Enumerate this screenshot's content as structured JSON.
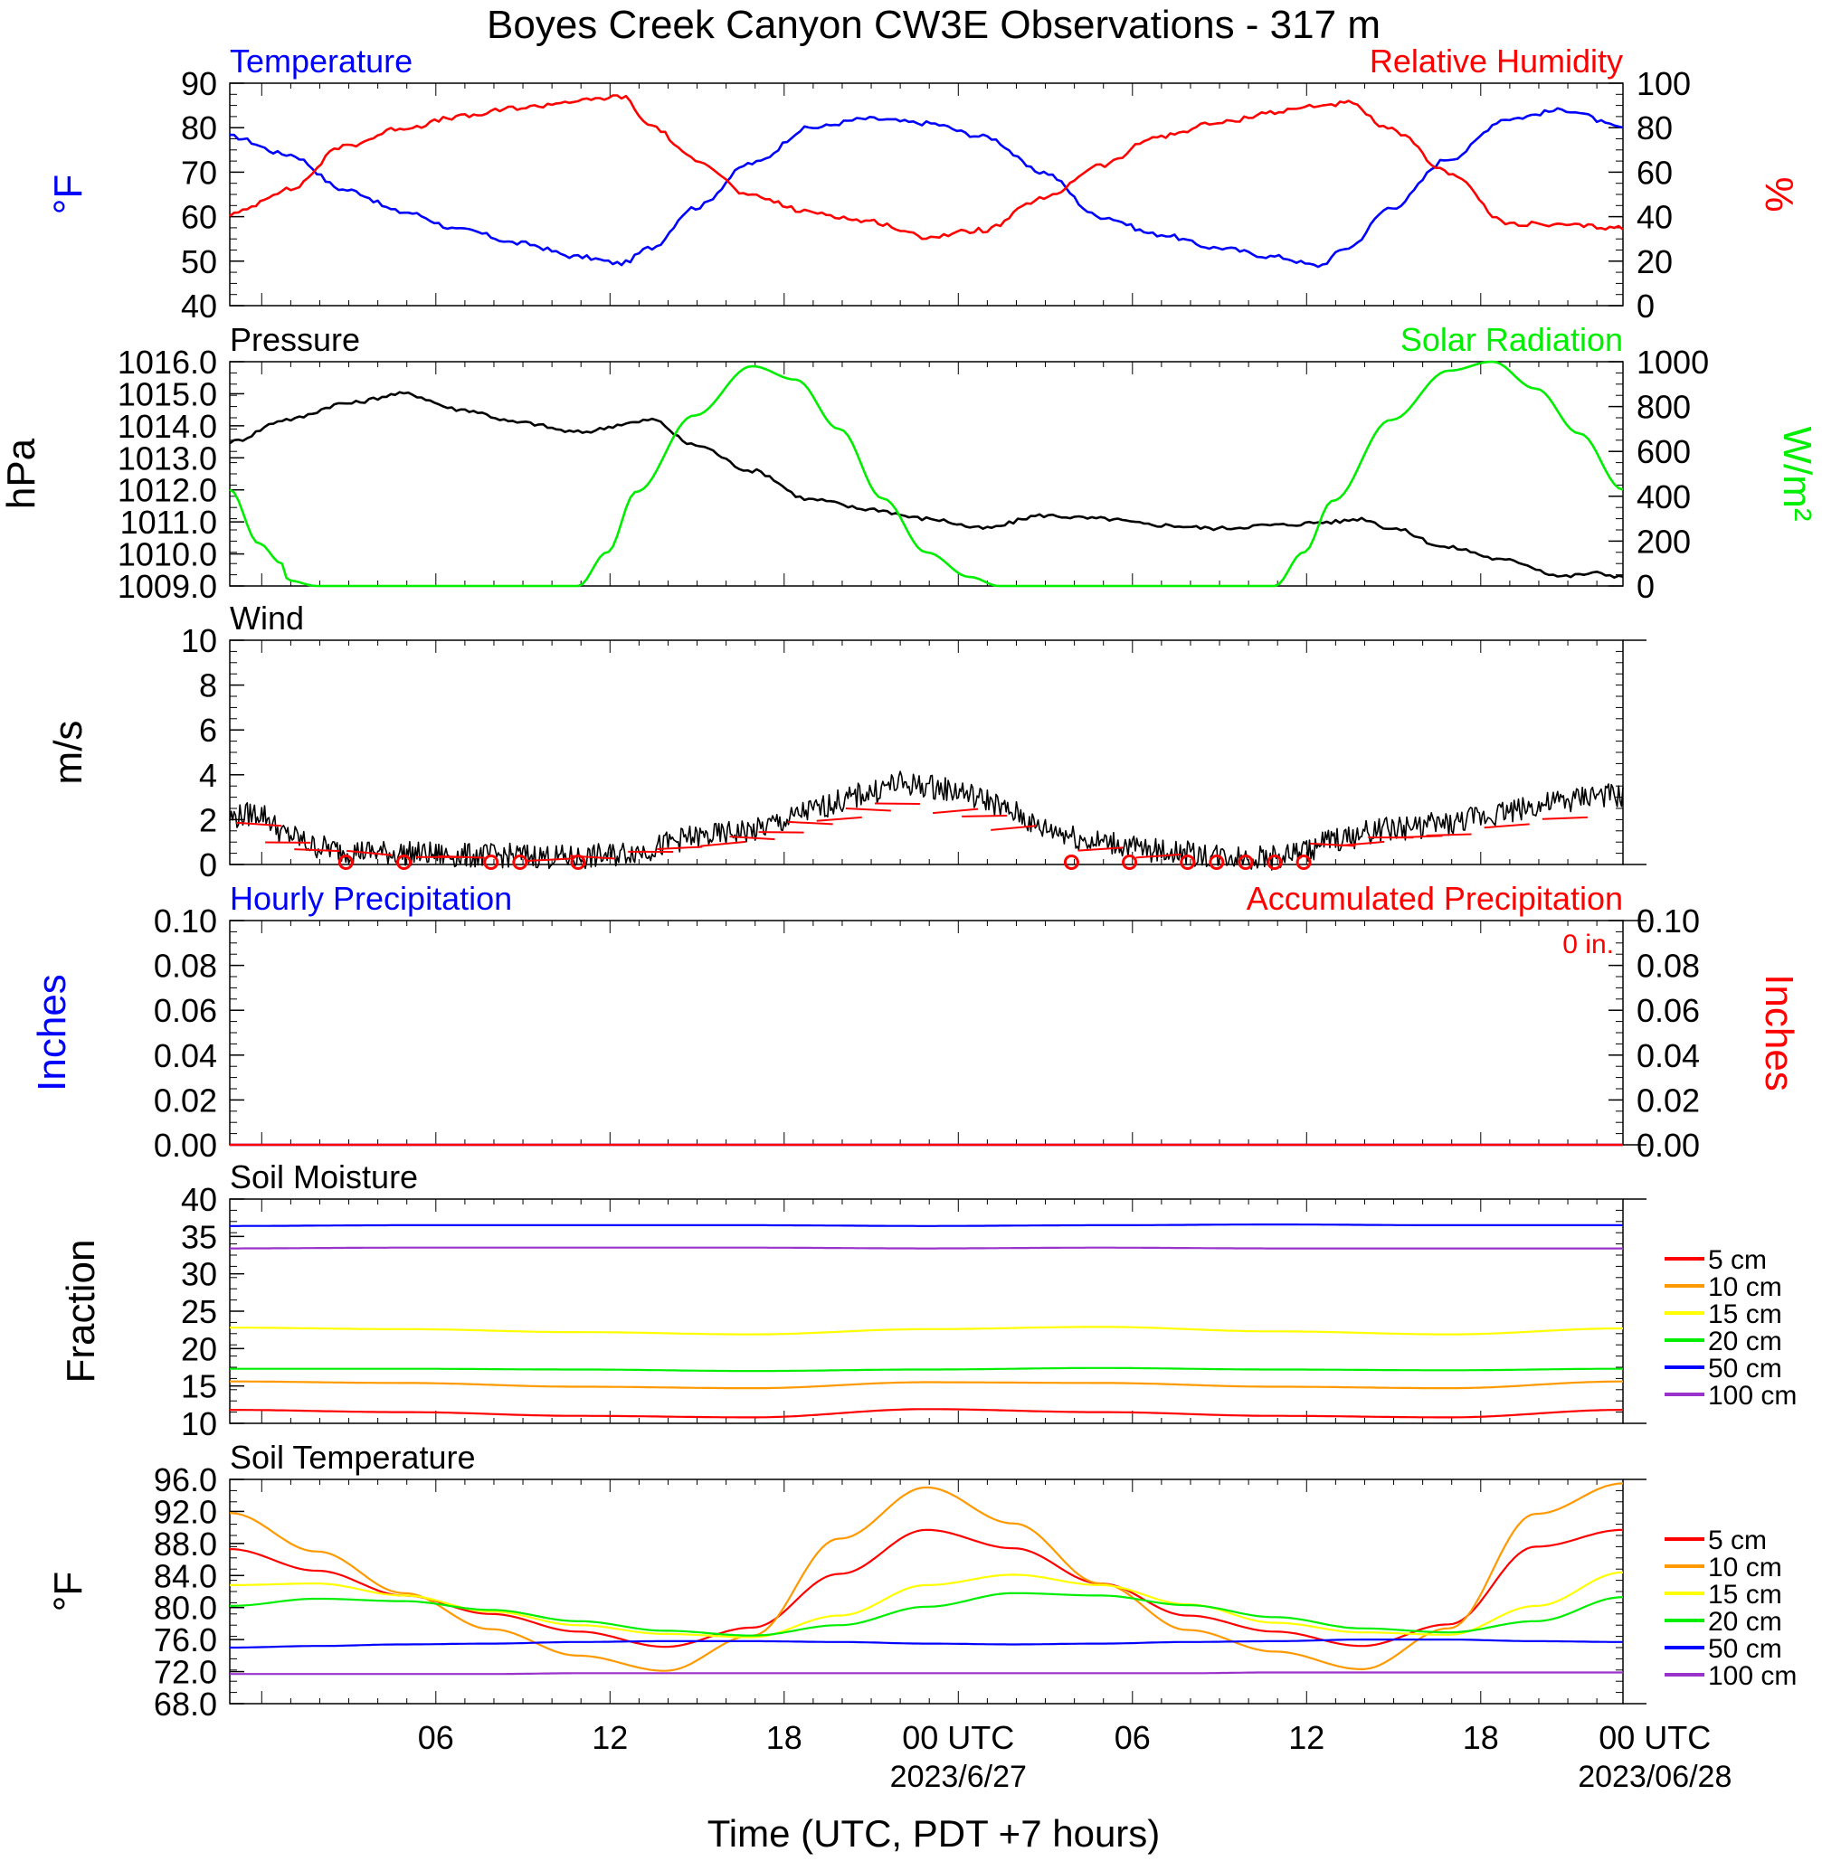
{
  "title": "Boyes Creek Canyon CW3E Observations - 317 m",
  "x_axis": {
    "label": "Time (UTC, PDT +7 hours)",
    "ticks": [
      "06",
      "12",
      "18",
      "00 UTC",
      "06",
      "12",
      "18",
      "00 UTC"
    ],
    "dates": [
      "2023/6/27",
      "2023/06/28"
    ]
  },
  "colors": {
    "blue": "#0000ff",
    "red": "#ff0000",
    "green": "#00ee00",
    "black": "#000000",
    "orange": "#ff9900",
    "yellow": "#ffff00",
    "purple": "#9933cc"
  },
  "chart_data": [
    {
      "type": "line",
      "title_left": "Temperature",
      "title_right": "Relative Humidity",
      "ylabel_left": "°F",
      "ylabel_right": "%",
      "ylim_left": [
        40,
        90
      ],
      "ylim_right": [
        0,
        100
      ],
      "yticks_left": [
        "90",
        "80",
        "70",
        "60",
        "50",
        "40"
      ],
      "yticks_right": [
        "100",
        "80",
        "60",
        "40",
        "20",
        "0"
      ],
      "x_hours": [
        0,
        2,
        4,
        6,
        8,
        10,
        12,
        13.5,
        14.5,
        16,
        18,
        20,
        22,
        24,
        26,
        28,
        30,
        32,
        34,
        36,
        37.5,
        38.5,
        40,
        42,
        44,
        46,
        48
      ],
      "series": [
        {
          "name": "Temperature",
          "axis": "left",
          "color": "#0000ff",
          "values": [
            78,
            74,
            66,
            61,
            57,
            54,
            51,
            49.5,
            53,
            62,
            72,
            80,
            82,
            81,
            78,
            70,
            60,
            56,
            53,
            51,
            49,
            53,
            62,
            73,
            82,
            84,
            80
          ]
        },
        {
          "name": "Relative Humidity",
          "axis": "right",
          "color": "#ff0000",
          "values": [
            41,
            52,
            72,
            80,
            85,
            89,
            92,
            94,
            81,
            66,
            49,
            42,
            38,
            31,
            34,
            48,
            63,
            76,
            82,
            87,
            90,
            91,
            79,
            60,
            37,
            36,
            35
          ]
        }
      ]
    },
    {
      "type": "line",
      "title_left": "Pressure",
      "title_right": "Solar Radiation",
      "ylabel_left": "hPa",
      "ylabel_right": "W/m²",
      "ylim_left": [
        1009,
        1016
      ],
      "ylim_right": [
        0,
        1000
      ],
      "yticks_left": [
        "1016.0",
        "1015.0",
        "1014.0",
        "1013.0",
        "1012.0",
        "1011.0",
        "1010.0",
        "1009.0"
      ],
      "yticks_right": [
        "1000",
        "800",
        "600",
        "400",
        "200",
        "0"
      ],
      "x_hours": [
        0,
        2,
        4,
        6,
        8,
        10,
        12,
        14,
        14.5,
        16,
        18,
        20,
        22,
        24,
        26,
        28,
        30,
        32,
        34,
        36,
        38,
        39,
        40,
        42,
        44,
        46,
        47,
        48
      ],
      "series": [
        {
          "name": "Pressure",
          "axis": "left",
          "color": "#000000",
          "values": [
            1013.5,
            1014.2,
            1014.7,
            1015.0,
            1014.5,
            1014.1,
            1013.8,
            1014.1,
            1014.2,
            1013.4,
            1012.6,
            1011.7,
            1011.4,
            1011.1,
            1010.8,
            1011.2,
            1011.1,
            1010.9,
            1010.8,
            1010.9,
            1011.0,
            1011.1,
            1010.8,
            1010.2,
            1009.8,
            1009.3,
            1009.4,
            1009.3
          ]
        },
        {
          "name": "Solar Radiation",
          "axis": "right",
          "color": "#00ee00",
          "x_hours": [
            0,
            1,
            1.8,
            2,
            3,
            10,
            12,
            13,
            14,
            16,
            18,
            19.5,
            21,
            22.5,
            24,
            25.5,
            26.5,
            27,
            34,
            36,
            37,
            38,
            40,
            42,
            43.5,
            45,
            46.5,
            48
          ],
          "values": [
            430,
            190,
            100,
            25,
            0,
            0,
            0,
            150,
            420,
            760,
            980,
            920,
            700,
            390,
            150,
            40,
            0,
            0,
            0,
            0,
            150,
            380,
            740,
            960,
            1000,
            880,
            680,
            430
          ]
        }
      ]
    },
    {
      "type": "line",
      "title_left": "Wind",
      "ylabel_left": "m/s",
      "ylim_left": [
        0,
        10
      ],
      "yticks_left": [
        "10",
        "8",
        "6",
        "4",
        "2",
        "0"
      ],
      "x_hours": [
        0,
        1,
        2,
        3,
        4,
        6,
        8,
        10,
        12,
        13,
        14,
        16,
        18,
        19,
        20,
        21,
        22,
        23,
        24,
        25,
        26,
        27,
        28,
        30,
        32,
        34,
        36,
        37,
        38,
        40,
        42,
        43,
        44,
        45,
        46,
        47,
        48
      ],
      "series": [
        {
          "name": "Wind speed",
          "axis": "left",
          "color": "#000000",
          "values": [
            2.1,
            2.3,
            1.3,
            0.8,
            0.6,
            0.5,
            0.4,
            0.4,
            0.3,
            0.4,
            0.6,
            1.2,
            1.5,
            1.9,
            2.4,
            2.8,
            3.2,
            3.6,
            3.5,
            3.3,
            2.9,
            2.3,
            1.6,
            1.0,
            0.6,
            0.4,
            0.3,
            0.6,
            1.1,
            1.6,
            1.8,
            2.1,
            2.4,
            2.6,
            2.8,
            3.1,
            3.0
          ]
        }
      ],
      "calm_markers_hours": [
        4,
        6,
        9,
        10,
        12,
        29,
        31,
        33,
        34,
        35,
        36,
        37
      ]
    },
    {
      "type": "line",
      "title_left": "Hourly Precipitation",
      "title_right": "Accumulated Precipitation",
      "annotation": "0 in.",
      "ylabel_left": "Inches",
      "ylabel_right": "Inches",
      "ylim_left": [
        0,
        0.1
      ],
      "ylim_right": [
        0,
        0.1
      ],
      "yticks_left": [
        "0.10",
        "0.08",
        "0.06",
        "0.04",
        "0.02",
        "0.00"
      ],
      "yticks_right": [
        "0.10",
        "0.08",
        "0.06",
        "0.04",
        "0.02",
        "0.00"
      ],
      "x_hours": [
        0,
        48
      ],
      "series": [
        {
          "name": "Hourly Precipitation",
          "axis": "left",
          "color": "#0000ff",
          "values": [
            0,
            0
          ]
        },
        {
          "name": "Accumulated Precipitation",
          "axis": "right",
          "color": "#ff0000",
          "values": [
            0,
            0
          ]
        }
      ]
    },
    {
      "type": "line",
      "title_left": "Soil Moisture",
      "ylabel_left": "Fraction",
      "ylim_left": [
        10,
        40
      ],
      "yticks_left": [
        "40",
        "35",
        "30",
        "25",
        "20",
        "15",
        "10"
      ],
      "x_hours": [
        0,
        6,
        12,
        18,
        24,
        30,
        36,
        42,
        48
      ],
      "series": [
        {
          "name": "5 cm",
          "color": "#ff0000",
          "values": [
            11.8,
            11.5,
            11.0,
            10.8,
            11.9,
            11.5,
            11.0,
            10.8,
            11.8
          ]
        },
        {
          "name": "10 cm",
          "color": "#ff9900",
          "values": [
            15.6,
            15.4,
            14.9,
            14.7,
            15.5,
            15.4,
            14.9,
            14.7,
            15.6
          ]
        },
        {
          "name": "15 cm",
          "color": "#ffff00",
          "values": [
            22.8,
            22.6,
            22.2,
            21.9,
            22.6,
            22.9,
            22.3,
            21.9,
            22.7
          ]
        },
        {
          "name": "20 cm",
          "color": "#00ee00",
          "values": [
            17.3,
            17.3,
            17.2,
            17.0,
            17.2,
            17.4,
            17.2,
            17.1,
            17.3
          ]
        },
        {
          "name": "50 cm",
          "color": "#0000ff",
          "values": [
            36.4,
            36.5,
            36.5,
            36.5,
            36.4,
            36.5,
            36.6,
            36.5,
            36.5
          ]
        },
        {
          "name": "100 cm",
          "color": "#9933cc",
          "values": [
            33.4,
            33.5,
            33.5,
            33.5,
            33.4,
            33.5,
            33.4,
            33.4,
            33.4
          ]
        }
      ]
    },
    {
      "type": "line",
      "title_left": "Soil Temperature",
      "ylabel_left": "°F",
      "ylim_left": [
        68,
        96
      ],
      "yticks_left": [
        "96.0",
        "92.0",
        "88.0",
        "84.0",
        "80.0",
        "76.0",
        "72.0",
        "68.0"
      ],
      "x_hours": [
        0,
        3,
        6,
        9,
        12,
        15,
        18,
        21,
        24,
        27,
        30,
        33,
        36,
        39,
        42,
        45,
        48
      ],
      "series": [
        {
          "name": "5 cm",
          "color": "#ff0000",
          "values": [
            87.3,
            84.6,
            81.5,
            79.2,
            77.0,
            75.1,
            77.5,
            84.2,
            89.7,
            87.4,
            83.0,
            79.0,
            77.0,
            75.2,
            77.9,
            87.6,
            89.7
          ]
        },
        {
          "name": "10 cm",
          "color": "#ff9900",
          "values": [
            91.8,
            87.0,
            81.8,
            77.3,
            74.0,
            72.1,
            76.5,
            88.6,
            95.0,
            90.5,
            83.0,
            77.2,
            74.5,
            72.3,
            77.4,
            91.7,
            95.5
          ]
        },
        {
          "name": "15 cm",
          "color": "#ffff00",
          "values": [
            82.8,
            83.0,
            81.5,
            79.5,
            77.8,
            76.7,
            76.3,
            79.0,
            82.8,
            84.1,
            82.8,
            80.4,
            78.1,
            76.9,
            76.6,
            80.2,
            84.4
          ]
        },
        {
          "name": "20 cm",
          "color": "#00ee00",
          "values": [
            80.2,
            81.1,
            80.8,
            79.7,
            78.3,
            77.1,
            76.5,
            77.8,
            80.1,
            81.8,
            81.5,
            80.3,
            78.8,
            77.4,
            76.9,
            78.3,
            81.3
          ]
        },
        {
          "name": "50 cm",
          "color": "#0000ff",
          "values": [
            75.0,
            75.2,
            75.4,
            75.5,
            75.7,
            75.8,
            75.8,
            75.7,
            75.5,
            75.4,
            75.5,
            75.7,
            75.8,
            76.0,
            76.0,
            75.8,
            75.7
          ]
        },
        {
          "name": "100 cm",
          "color": "#9933cc",
          "values": [
            71.7,
            71.7,
            71.7,
            71.7,
            71.8,
            71.8,
            71.8,
            71.8,
            71.8,
            71.8,
            71.8,
            71.8,
            71.9,
            71.9,
            71.9,
            71.9,
            71.9
          ]
        }
      ]
    }
  ]
}
